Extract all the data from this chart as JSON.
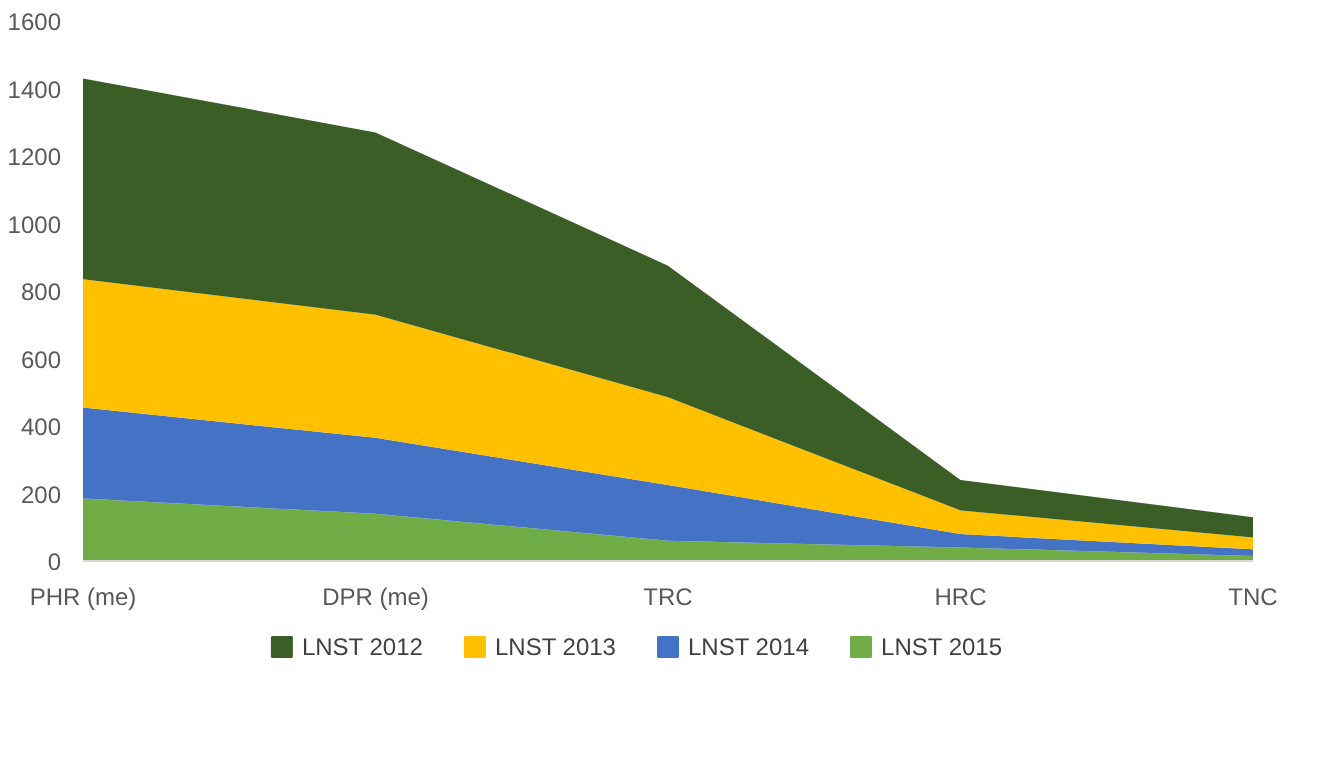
{
  "chart_data": {
    "type": "area",
    "stacked": true,
    "categories": [
      "PHR (me)",
      "DPR (me)",
      "TRC",
      "HRC",
      "TNC"
    ],
    "series": [
      {
        "name": "LNST 2015",
        "color": "#70ad47",
        "values": [
          185,
          140,
          60,
          40,
          15
        ]
      },
      {
        "name": "LNST 2014",
        "color": "#4472c4",
        "values": [
          270,
          225,
          165,
          40,
          20
        ]
      },
      {
        "name": "LNST 2013",
        "color": "#ffc000",
        "values": [
          380,
          365,
          260,
          70,
          35
        ]
      },
      {
        "name": "LNST 2012",
        "color": "#3b5e27",
        "values": [
          595,
          540,
          390,
          90,
          60
        ]
      }
    ],
    "ylim": [
      0,
      1600
    ],
    "yticks": [
      0,
      200,
      400,
      600,
      800,
      1000,
      1200,
      1400,
      1600
    ],
    "grid": false,
    "legend": "bottom"
  }
}
